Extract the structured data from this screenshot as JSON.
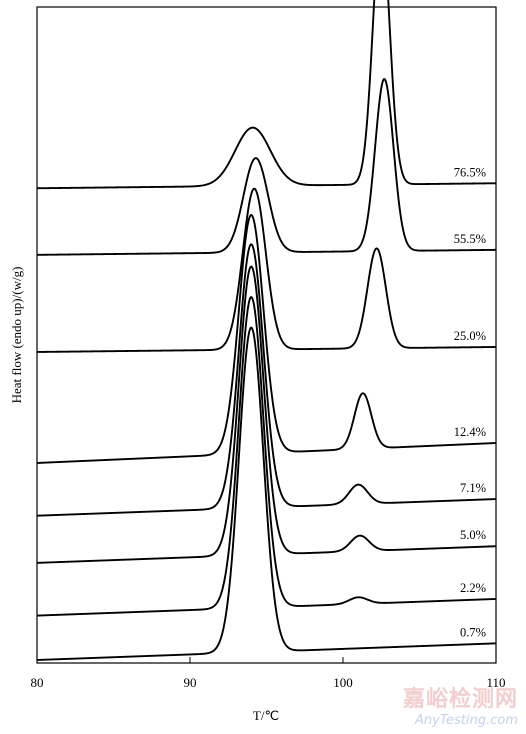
{
  "chart_data": {
    "type": "line",
    "title": "",
    "xlabel": "T/℃",
    "ylabel": "Heat flow (endo up)/(w/g)",
    "xlim": [
      80,
      110
    ],
    "x_ticks": [
      "80",
      "90",
      "100",
      "110"
    ],
    "x_tick_values": [
      80,
      90,
      100,
      110
    ],
    "y_ticks_shown": false,
    "grid": false,
    "legend": "none",
    "series": [
      {
        "name": "76.5%",
        "baseline": 8.5,
        "slope": 0.003,
        "peaks": [
          {
            "x": 94.1,
            "height": 1.05,
            "width": 1.15
          },
          {
            "x": 102.5,
            "height": 4.7,
            "width": 0.55
          }
        ]
      },
      {
        "name": "55.5%",
        "baseline": 7.3,
        "slope": 0.003,
        "peaks": [
          {
            "x": 94.3,
            "height": 1.7,
            "width": 0.8
          },
          {
            "x": 102.7,
            "height": 3.1,
            "width": 0.6
          }
        ]
      },
      {
        "name": "25.0%",
        "baseline": 5.55,
        "slope": 0.003,
        "peaks": [
          {
            "x": 94.2,
            "height": 2.9,
            "width": 0.75
          },
          {
            "x": 102.2,
            "height": 1.8,
            "width": 0.6
          }
        ]
      },
      {
        "name": "12.4%",
        "baseline": 3.55,
        "slope": 0.012,
        "peaks": [
          {
            "x": 94.0,
            "height": 4.3,
            "width": 0.8
          },
          {
            "x": 101.3,
            "height": 1.0,
            "width": 0.55
          }
        ]
      },
      {
        "name": "7.1%",
        "baseline": 2.6,
        "slope": 0.01,
        "peaks": [
          {
            "x": 94.0,
            "height": 4.75,
            "width": 0.8
          },
          {
            "x": 101.0,
            "height": 0.35,
            "width": 0.6
          }
        ]
      },
      {
        "name": "5.0%",
        "baseline": 1.75,
        "slope": 0.01,
        "peaks": [
          {
            "x": 94.0,
            "height": 5.2,
            "width": 0.8
          },
          {
            "x": 101.1,
            "height": 0.28,
            "width": 0.6
          }
        ]
      },
      {
        "name": "2.2%",
        "baseline": 0.8,
        "slope": 0.01,
        "peaks": [
          {
            "x": 94.0,
            "height": 5.6,
            "width": 0.8
          },
          {
            "x": 101.0,
            "height": 0.12,
            "width": 0.6
          }
        ]
      },
      {
        "name": "0.7%",
        "baseline": 0.0,
        "slope": 0.01,
        "peaks": [
          {
            "x": 94.0,
            "height": 5.85,
            "width": 0.8
          }
        ]
      }
    ]
  },
  "watermark": {
    "cn": "嘉峪检测网",
    "en": "AnyTesting.com"
  }
}
